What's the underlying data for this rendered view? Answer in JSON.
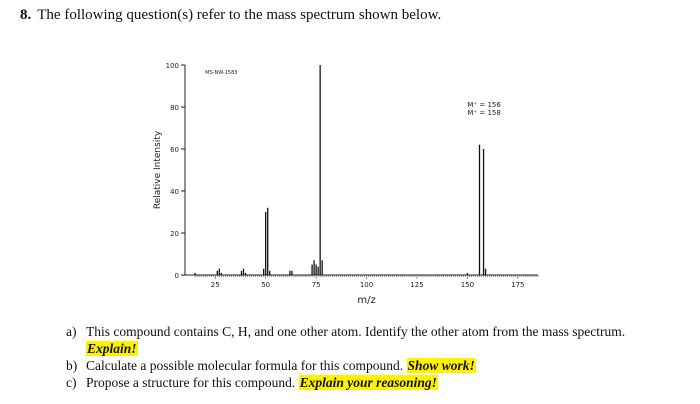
{
  "question": {
    "number": "8.",
    "text": "The following question(s) refer to the mass spectrum shown below."
  },
  "chart_data": {
    "type": "bar",
    "xlabel": "m/z",
    "ylabel": "Relative Intensity",
    "xlim": [
      10,
      185
    ],
    "ylim": [
      0,
      100
    ],
    "xticks": [
      25,
      50,
      75,
      100,
      125,
      150,
      175
    ],
    "yticks": [
      0,
      20,
      40,
      60,
      80,
      100
    ],
    "id_label": "MS-NW-1583",
    "annotations": [
      "M⁺ = 156",
      "M⁺ = 158"
    ],
    "peaks": [
      {
        "mz": 15,
        "intensity": 1
      },
      {
        "mz": 26,
        "intensity": 2
      },
      {
        "mz": 27,
        "intensity": 3
      },
      {
        "mz": 28,
        "intensity": 1
      },
      {
        "mz": 38,
        "intensity": 2
      },
      {
        "mz": 39,
        "intensity": 3
      },
      {
        "mz": 40,
        "intensity": 1
      },
      {
        "mz": 49,
        "intensity": 3
      },
      {
        "mz": 50,
        "intensity": 30
      },
      {
        "mz": 51,
        "intensity": 32
      },
      {
        "mz": 52,
        "intensity": 2
      },
      {
        "mz": 62,
        "intensity": 2
      },
      {
        "mz": 63,
        "intensity": 2
      },
      {
        "mz": 73,
        "intensity": 5
      },
      {
        "mz": 74,
        "intensity": 7
      },
      {
        "mz": 75,
        "intensity": 5
      },
      {
        "mz": 76,
        "intensity": 4
      },
      {
        "mz": 77,
        "intensity": 100
      },
      {
        "mz": 78,
        "intensity": 7
      },
      {
        "mz": 150,
        "intensity": 1
      },
      {
        "mz": 156,
        "intensity": 62
      },
      {
        "mz": 158,
        "intensity": 60
      },
      {
        "mz": 159,
        "intensity": 3
      }
    ]
  },
  "parts": {
    "a": {
      "label": "a)",
      "text": "This compound contains C, H, and one other atom. Identify the other atom from the mass spectrum.",
      "highlight": "Explain!"
    },
    "b": {
      "label": "b)",
      "text": "Calculate a possible molecular formula for this compound.",
      "highlight": "Show work!"
    },
    "c": {
      "label": "c)",
      "text": "Propose a structure for this compound.",
      "highlight": "Explain your reasoning!"
    }
  }
}
